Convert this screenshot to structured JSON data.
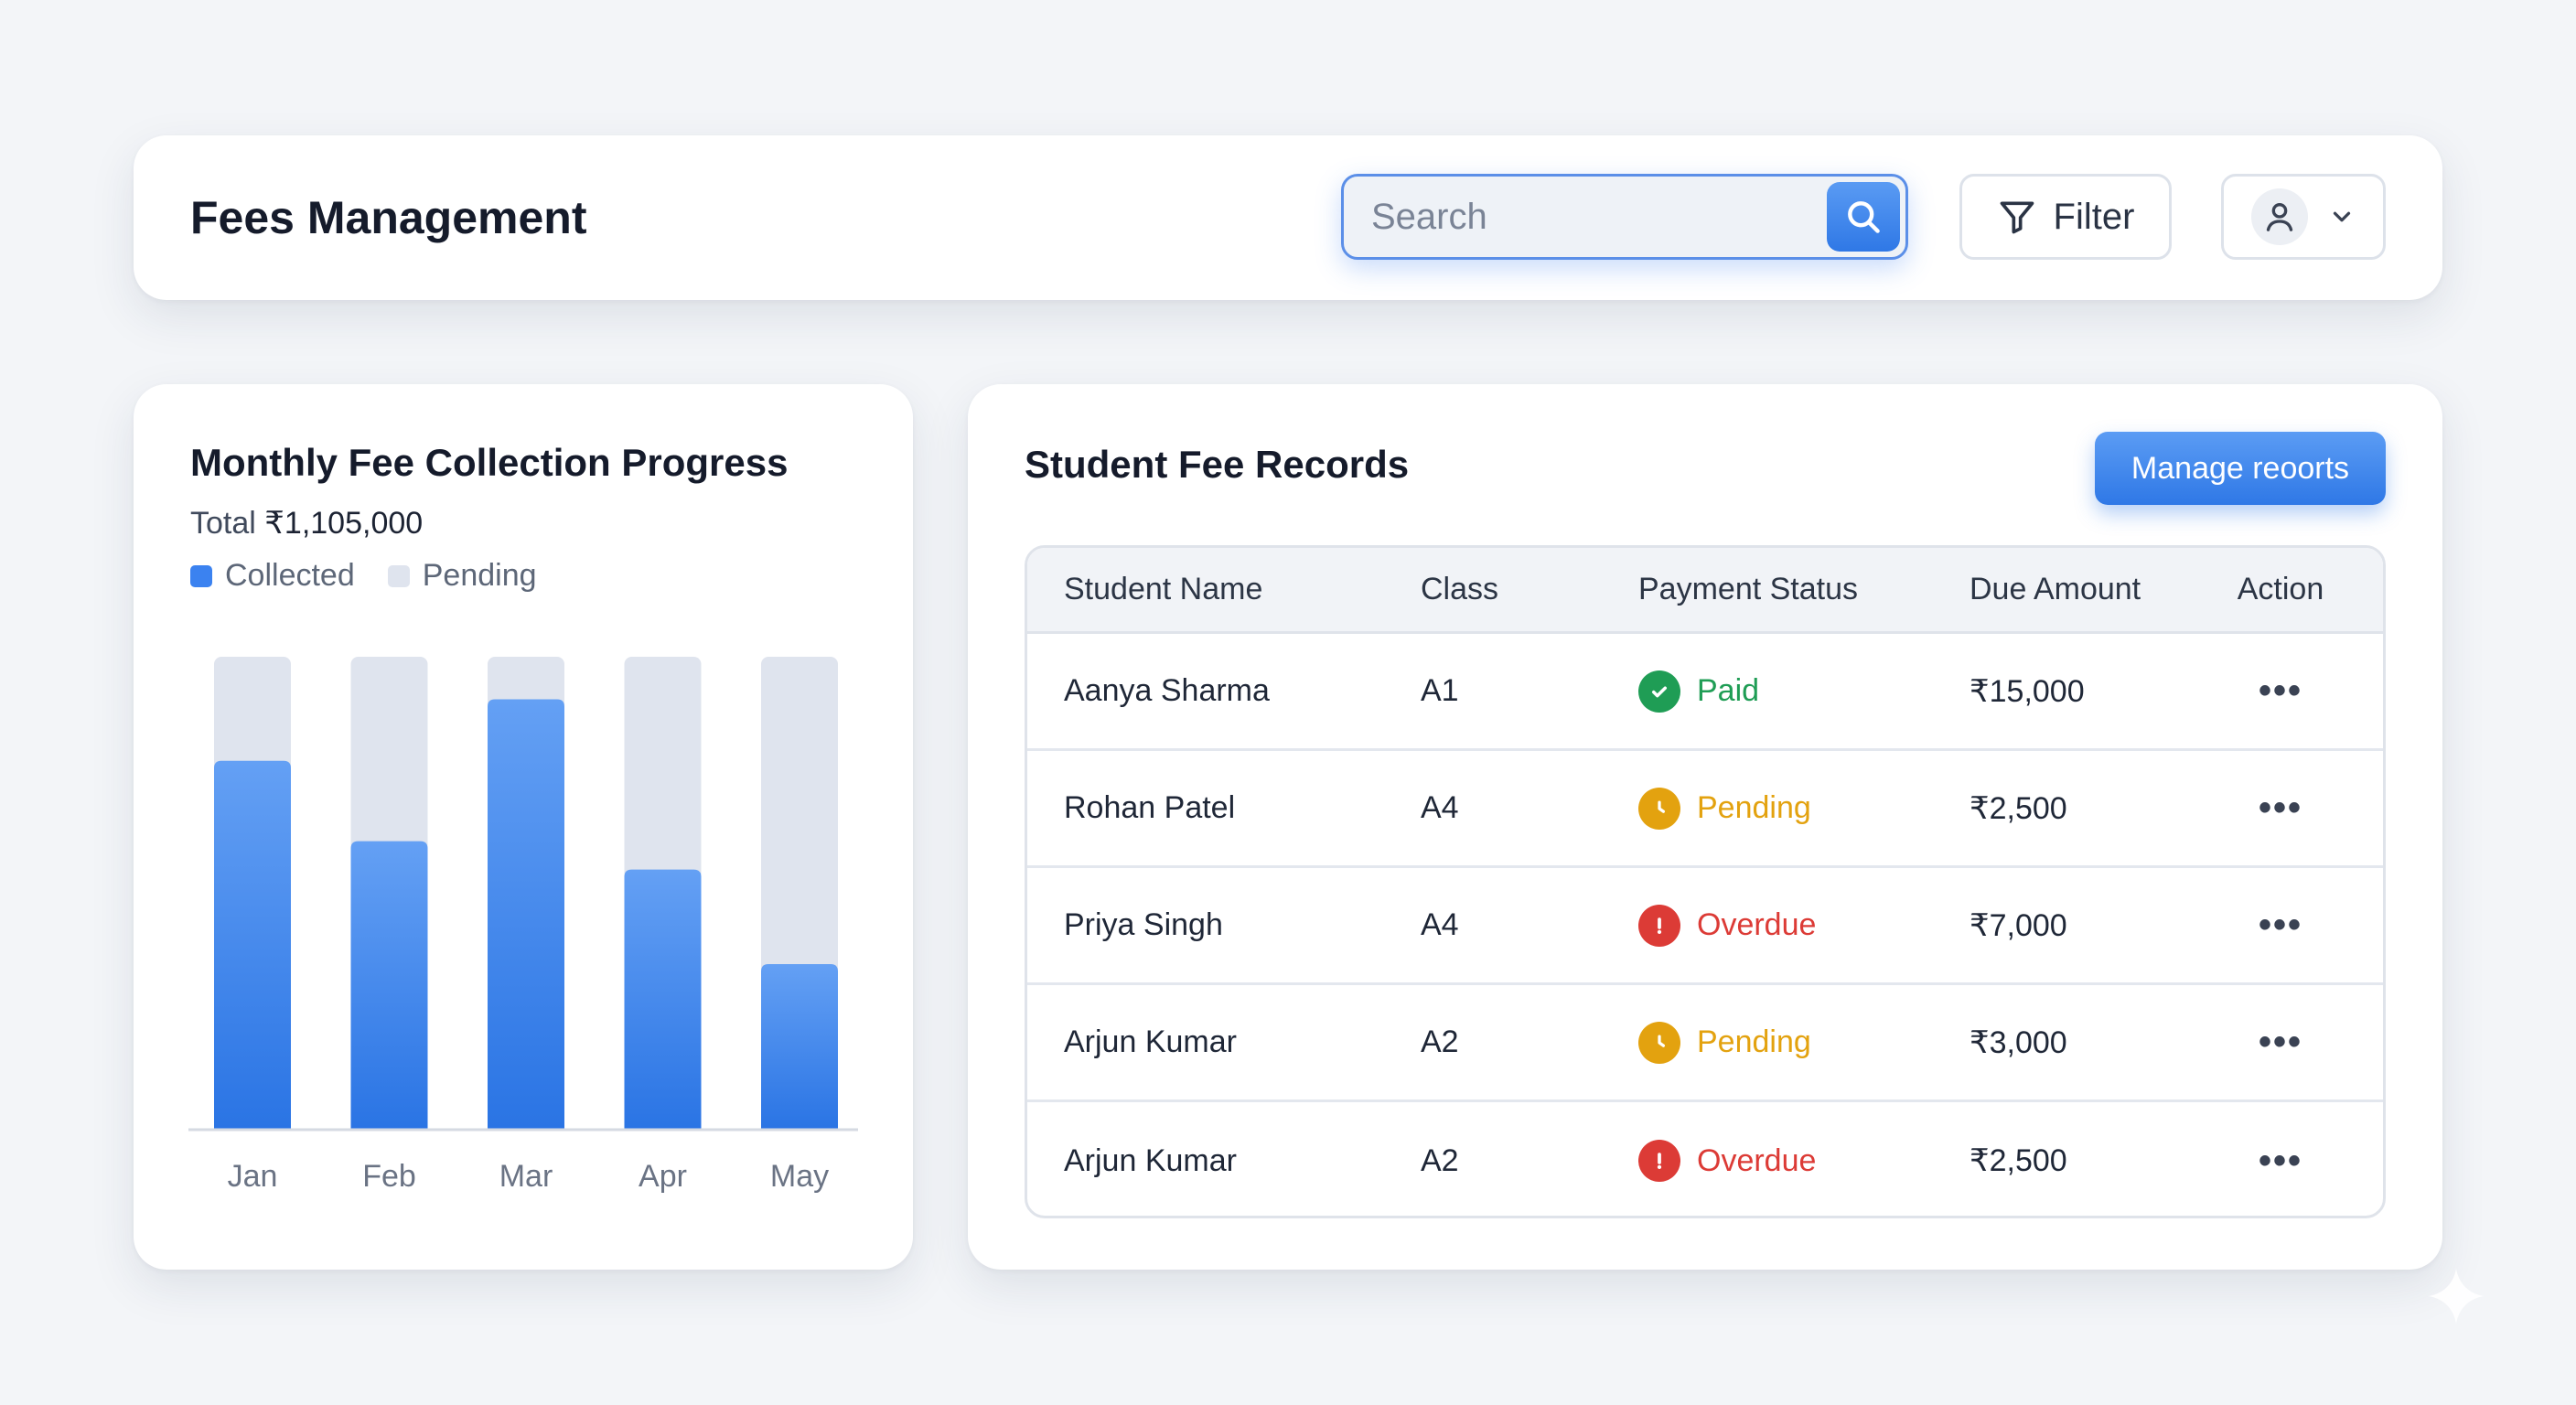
{
  "header": {
    "title": "Fees Management",
    "search_placeholder": "Search",
    "filter_label": "Filter"
  },
  "chart_card": {
    "title": "Monthly Fee Collection Progress",
    "total_label": "Total",
    "total_value": "₹1,105,000",
    "legend": [
      {
        "label": "Collected",
        "color": "#3b82f0"
      },
      {
        "label": "Pending",
        "color": "#dfe4ee"
      }
    ]
  },
  "chart_data": {
    "type": "bar",
    "stacked": true,
    "categories": [
      "Jan",
      "Feb",
      "Mar",
      "Apr",
      "May"
    ],
    "series": [
      {
        "name": "Collected",
        "values": [
          78,
          61,
          91,
          55,
          35
        ]
      },
      {
        "name": "Pending",
        "values": [
          22,
          39,
          9,
          45,
          65
        ]
      }
    ],
    "ylim": [
      0,
      100
    ],
    "grid": false,
    "legend_position": "top-left"
  },
  "table_card": {
    "title": "Student Fee Records",
    "manage_label": "Manage reoorts",
    "columns": [
      "Student Name",
      "Class",
      "Payment Status",
      "Due Amount",
      "Action"
    ],
    "rows": [
      {
        "name": "Aanya Sharma",
        "class": "A1",
        "status": "Paid",
        "status_type": "paid",
        "amount": "₹15,000",
        "action": "•••"
      },
      {
        "name": "Rohan Patel",
        "class": "A4",
        "status": "Pending",
        "status_type": "pending",
        "amount": "₹2,500",
        "action": "•••"
      },
      {
        "name": "Priya Singh",
        "class": "A4",
        "status": "Overdue",
        "status_type": "overdue",
        "amount": "₹7,000",
        "action": "•••"
      },
      {
        "name": "Arjun Kumar",
        "class": "A2",
        "status": "Pending",
        "status_type": "pending",
        "amount": "₹3,000",
        "action": "•••"
      },
      {
        "name": "Arjun Kumar",
        "class": "A2",
        "status": "Overdue",
        "status_type": "overdue",
        "amount": "₹2,500",
        "action": "•••"
      }
    ]
  },
  "status_colors": {
    "paid": "#1f9d55",
    "pending": "#e3a20f",
    "overdue": "#dc3b36"
  },
  "accent": "#3b82f0"
}
